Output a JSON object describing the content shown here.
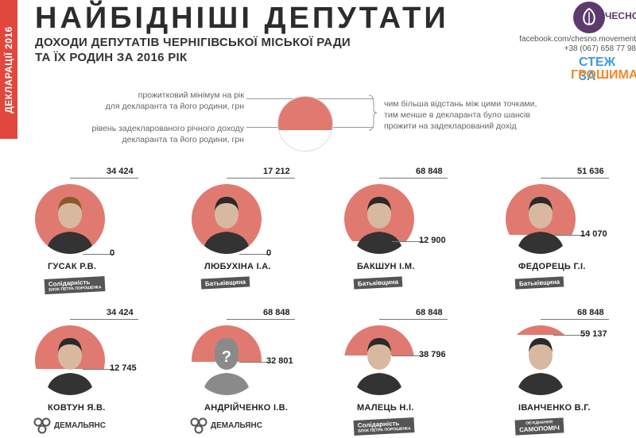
{
  "side_tab": "ДЕКЛАРАЦІЇ 2016",
  "title": "НАЙБІДНІШІ ДЕПУТАТИ",
  "subtitle_line1": "ДОХОДИ ДЕПУТАТІВ ЧЕРНІГІВСЬКОЇ МІСЬКОЇ РАДИ",
  "subtitle_line2": "ТА ЇХ РОДИН ЗА 2016 РІК",
  "brand": {
    "logo": "ЧЕСНО",
    "facebook": "facebook.com/chesno.movement",
    "phone": "+38 (067) 658 77 98",
    "stezh_line1": "СТЕЖ ЗА",
    "stezh_line2": "ГРОШИМА"
  },
  "legend": {
    "min_line1": "прожитковий мінімум на рік",
    "min_line2": "для декларанта та його родини, грн",
    "income_line1": "рівень задекларованого річного доходу",
    "income_line2": "декларанта та його родини, грн",
    "note_line1": "чим більша відстань між цими точками,",
    "note_line2": "тим менше в декларанта було шансів",
    "note_line3": "прожити на задекларований дохід"
  },
  "deputies": [
    {
      "name": "ГУСАК Р.В.",
      "min": "34 424",
      "income": "0",
      "min_value": 34424,
      "income_value": 0,
      "party": "Солідарність",
      "party_sub": "БЛОК ПЕТРА ПОРОШЕНКА"
    },
    {
      "name": "ЛЮБУХІНА І.А.",
      "min": "17 212",
      "income": "0",
      "min_value": 17212,
      "income_value": 0,
      "party": "Батьківщина",
      "party_sub": ""
    },
    {
      "name": "БАКШУН І.М.",
      "min": "68 848",
      "income": "12 900",
      "min_value": 68848,
      "income_value": 12900,
      "party": "Батьківщина",
      "party_sub": ""
    },
    {
      "name": "ФЕДОРЕЦЬ Г.І.",
      "min": "51 636",
      "income": "14 070",
      "min_value": 51636,
      "income_value": 14070,
      "party": "Батьківщина",
      "party_sub": ""
    },
    {
      "name": "КОВТУН Я.В.",
      "min": "34 424",
      "income": "12 745",
      "min_value": 34424,
      "income_value": 12745,
      "party": "ДЕМАЛЬЯНС",
      "party_sub": ""
    },
    {
      "name": "АНДРІЙЧЕНКО І.В.",
      "min": "68 848",
      "income": "32 801",
      "min_value": 68848,
      "income_value": 32801,
      "party": "ДЕМАЛЬЯНС",
      "party_sub": ""
    },
    {
      "name": "МАЛЕЦЬ Н.І.",
      "min": "68 848",
      "income": "38 796",
      "min_value": 68848,
      "income_value": 38796,
      "party": "Солідарність",
      "party_sub": "БЛОК ПЕТРА ПОРОШЕНКА"
    },
    {
      "name": "ІВАНЧЕНКО В.Г.",
      "min": "68 848",
      "income": "59 137",
      "min_value": 68848,
      "income_value": 59137,
      "party": "САМОПОМІЧ",
      "party_sub": "ОБ'ЄДНАННЯ"
    }
  ],
  "colors": {
    "accent": "#e0483e",
    "fill": "#e07a70",
    "brand_purple": "#5c3a6e",
    "blue": "#3b9cd9",
    "orange": "#f08a2c"
  }
}
